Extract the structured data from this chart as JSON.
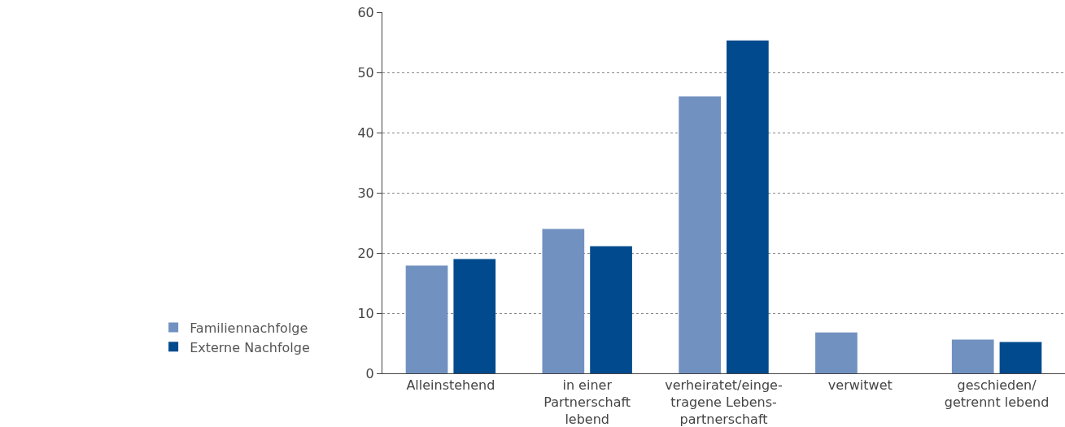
{
  "chart_data": {
    "type": "bar",
    "categories": [
      "Alleinstehend",
      "in einer\nPartnerschaft\nlebend",
      "verheiratet/einge-\ntragene Lebens-\npartnerschaft",
      "verwitwet",
      "geschieden/\ngetrennt lebend"
    ],
    "series": [
      {
        "name": "Familiennachfolge",
        "color": "#7191c0",
        "values": [
          17.9,
          24.0,
          46.0,
          6.8,
          5.6
        ]
      },
      {
        "name": "Externe Nachfolge",
        "color": "#004a8d",
        "values": [
          19.0,
          21.1,
          55.3,
          null,
          5.2
        ]
      }
    ],
    "ylim": [
      0,
      60
    ],
    "yticks": [
      0,
      10,
      20,
      30,
      40,
      50,
      60
    ],
    "grid": "y",
    "legend": "left"
  }
}
